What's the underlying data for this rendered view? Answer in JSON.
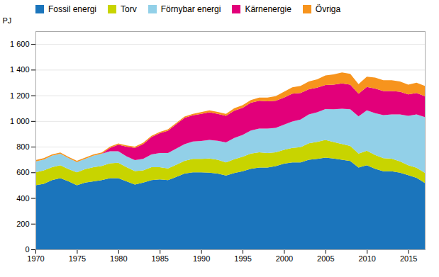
{
  "chart_data": {
    "type": "area",
    "stacked": true,
    "ylabel": "PJ",
    "x": [
      1970,
      1971,
      1972,
      1973,
      1974,
      1975,
      1976,
      1977,
      1978,
      1979,
      1980,
      1981,
      1982,
      1983,
      1984,
      1985,
      1986,
      1987,
      1988,
      1989,
      1990,
      1991,
      1992,
      1993,
      1994,
      1995,
      1996,
      1997,
      1998,
      1999,
      2000,
      2001,
      2002,
      2003,
      2004,
      2005,
      2006,
      2007,
      2008,
      2009,
      2010,
      2011,
      2012,
      2013,
      2014,
      2015,
      2016,
      2017
    ],
    "series": [
      {
        "name": "Fossil energi",
        "color": "#1b75bc",
        "values": [
          500,
          510,
          540,
          555,
          530,
          500,
          520,
          530,
          540,
          555,
          555,
          530,
          505,
          520,
          540,
          545,
          540,
          565,
          590,
          600,
          600,
          598,
          590,
          575,
          595,
          608,
          628,
          638,
          638,
          648,
          668,
          678,
          678,
          698,
          705,
          715,
          708,
          698,
          688,
          638,
          655,
          628,
          608,
          608,
          598,
          578,
          558,
          518
        ]
      },
      {
        "name": "Torv",
        "color": "#c8d400",
        "values": [
          100,
          105,
          100,
          100,
          95,
          100,
          105,
          110,
          110,
          115,
          120,
          110,
          105,
          95,
          100,
          95,
          90,
          95,
          100,
          105,
          105,
          110,
          108,
          103,
          108,
          113,
          118,
          118,
          113,
          108,
          108,
          113,
          118,
          128,
          133,
          138,
          128,
          123,
          118,
          108,
          113,
          108,
          103,
          98,
          88,
          78,
          78,
          78
        ]
      },
      {
        "name": "Förnybar energi",
        "color": "#92d0e8",
        "values": [
          85,
          85,
          90,
          90,
          85,
          80,
          80,
          90,
          95,
          95,
          90,
          85,
          85,
          90,
          100,
          110,
          120,
          125,
          130,
          135,
          140,
          145,
          148,
          155,
          165,
          170,
          180,
          185,
          190,
          190,
          195,
          205,
          215,
          225,
          230,
          240,
          255,
          275,
          285,
          290,
          315,
          325,
          335,
          345,
          365,
          385,
          415,
          435
        ]
      },
      {
        "name": "Kärnenergie",
        "color": "#e2007a",
        "values": [
          0,
          0,
          0,
          0,
          0,
          0,
          0,
          0,
          0,
          25,
          50,
          75,
          95,
          115,
          135,
          155,
          175,
          190,
          205,
          205,
          210,
          215,
          210,
          207,
          212,
          212,
          217,
          217,
          212,
          212,
          212,
          217,
          207,
          197,
          192,
          187,
          192,
          197,
          192,
          177,
          182,
          192,
          187,
          182,
          177,
          167,
          167,
          162
        ]
      },
      {
        "name": "Övriga",
        "color": "#f7941d",
        "values": [
          10,
          10,
          10,
          10,
          10,
          10,
          10,
          10,
          10,
          10,
          10,
          10,
          10,
          10,
          10,
          10,
          10,
          10,
          10,
          10,
          15,
          15,
          15,
          15,
          20,
          20,
          20,
          25,
          30,
          35,
          45,
          50,
          55,
          60,
          65,
          75,
          80,
          85,
          85,
          75,
          80,
          85,
          85,
          85,
          80,
          75,
          80,
          80
        ]
      }
    ],
    "xlim": [
      1970,
      2017
    ],
    "xticks": [
      1970,
      1975,
      1980,
      1985,
      1990,
      1995,
      2000,
      2005,
      2010,
      2015
    ],
    "ylim": [
      0,
      1700
    ],
    "yticks": [
      0,
      200,
      400,
      600,
      800,
      {
        "value": 1000,
        "label": "1 000"
      },
      {
        "value": 1200,
        "label": "1 200"
      },
      {
        "value": 1400,
        "label": "1 400"
      },
      {
        "value": 1600,
        "label": "1 600"
      }
    ],
    "grid": "y",
    "legend": "upper left"
  }
}
